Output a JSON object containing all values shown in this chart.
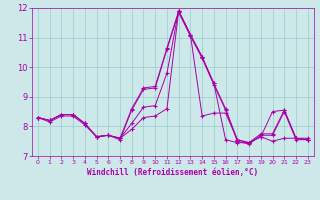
{
  "title": "",
  "xlabel": "Windchill (Refroidissement éolien,°C)",
  "ylabel": "",
  "xlim": [
    -0.5,
    23.5
  ],
  "ylim": [
    7,
    12
  ],
  "yticks": [
    7,
    8,
    9,
    10,
    11,
    12
  ],
  "xticks": [
    0,
    1,
    2,
    3,
    4,
    5,
    6,
    7,
    8,
    9,
    10,
    11,
    12,
    13,
    14,
    15,
    16,
    17,
    18,
    19,
    20,
    21,
    22,
    23
  ],
  "line_color": "#aa00aa",
  "bg_color": "#cce8e8",
  "grid_color": "#99cccc",
  "series": [
    [
      8.3,
      8.2,
      8.4,
      8.4,
      8.1,
      7.65,
      7.7,
      7.6,
      8.6,
      9.3,
      9.35,
      10.65,
      11.9,
      11.1,
      10.35,
      9.45,
      8.6,
      7.55,
      7.45,
      7.75,
      7.75,
      8.55,
      7.6,
      7.6
    ],
    [
      8.3,
      8.15,
      8.35,
      8.35,
      8.05,
      7.65,
      7.7,
      7.55,
      8.55,
      9.25,
      9.3,
      10.6,
      11.85,
      11.05,
      10.3,
      9.4,
      8.55,
      7.5,
      7.4,
      7.7,
      7.7,
      8.5,
      7.55,
      7.55
    ],
    [
      8.3,
      8.2,
      8.4,
      8.4,
      8.1,
      7.65,
      7.7,
      7.6,
      8.1,
      8.65,
      8.7,
      9.8,
      11.9,
      11.1,
      10.35,
      9.45,
      7.55,
      7.45,
      7.45,
      7.65,
      7.5,
      7.6,
      7.6,
      7.55
    ],
    [
      8.3,
      8.2,
      8.4,
      8.4,
      8.1,
      7.65,
      7.7,
      7.6,
      7.9,
      8.3,
      8.35,
      8.6,
      11.9,
      11.1,
      8.35,
      8.45,
      8.45,
      7.55,
      7.45,
      7.65,
      8.5,
      8.55,
      7.6,
      7.55
    ]
  ]
}
